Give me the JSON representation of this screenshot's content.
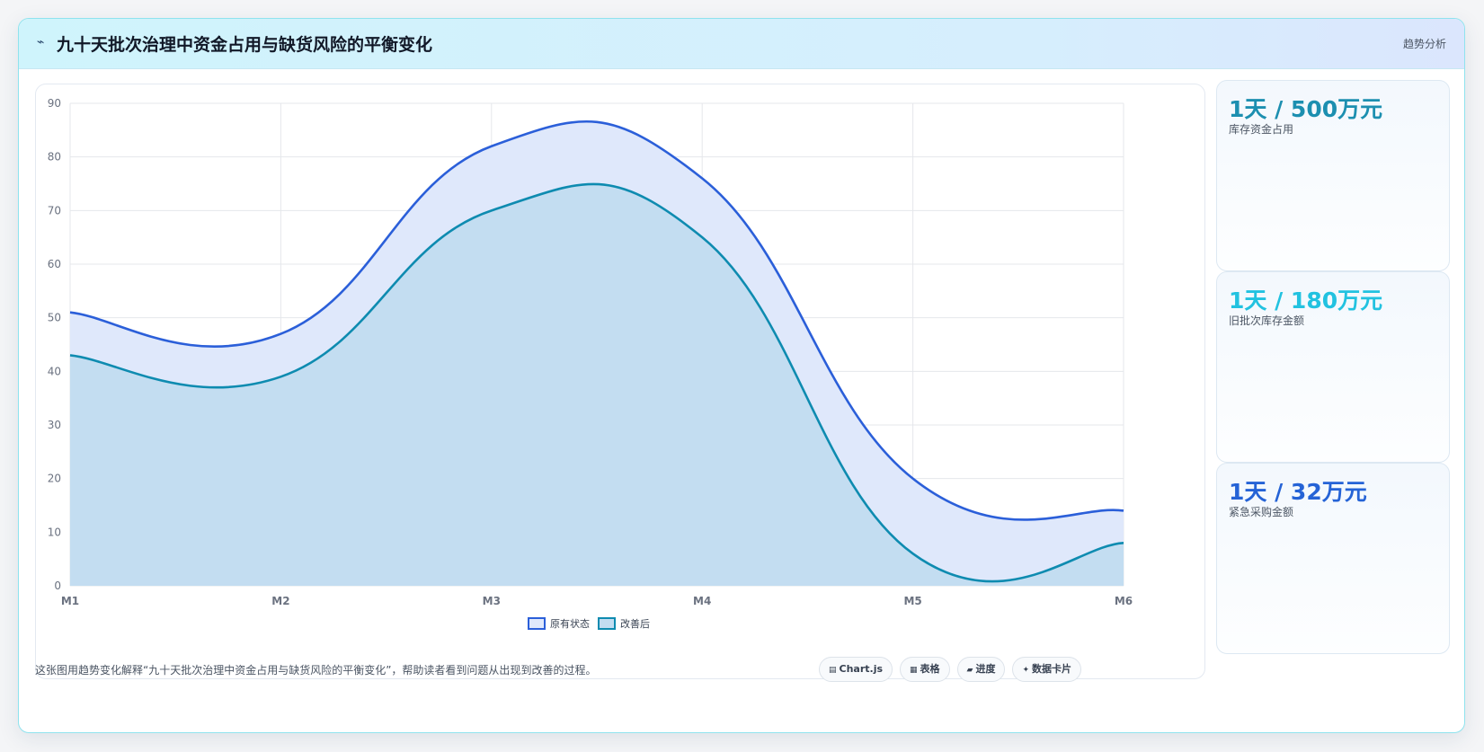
{
  "header": {
    "icon": "trend-icon",
    "title": "九十天批次治理中资金占用与缺货风险的平衡变化",
    "tag": "趋势分析"
  },
  "stats": [
    {
      "value": "1天 / 500万元",
      "label": "库存资金占用",
      "color": "#1c8fb0"
    },
    {
      "value": "1天 / 180万元",
      "label": "旧批次库存金额",
      "color": "#22c2e0"
    },
    {
      "value": "1天 / 32万元",
      "label": "紧急采购金额",
      "color": "#2563d6"
    }
  ],
  "footer": {
    "description": "这张图用趋势变化解释“九十天批次治理中资金占用与缺货风险的平衡变化”，帮助读者看到问题从出现到改善的过程。",
    "chips": [
      {
        "icon": "chart-icon",
        "glyph": "▤",
        "label": "Chart.js"
      },
      {
        "icon": "table-icon",
        "glyph": "▦",
        "label": "表格"
      },
      {
        "icon": "progress-icon",
        "glyph": "▰",
        "label": "进度"
      },
      {
        "icon": "card-icon",
        "glyph": "✦",
        "label": "数据卡片"
      }
    ]
  },
  "chart_data": {
    "type": "area",
    "categories": [
      "M1",
      "M2",
      "M3",
      "M4",
      "M5",
      "M6"
    ],
    "ylim": [
      0,
      90
    ],
    "yticks": [
      0,
      10,
      20,
      30,
      40,
      50,
      60,
      70,
      80,
      90
    ],
    "grid": true,
    "legend_position": "bottom",
    "series": [
      {
        "name": "原有状态",
        "values": [
          51,
          47,
          82,
          76,
          20,
          14
        ],
        "color": "#2b5fd9",
        "fill": "#dfe8fb"
      },
      {
        "name": "改善后",
        "values": [
          43,
          39,
          70,
          65,
          6,
          8
        ],
        "color": "#0e8bb0",
        "fill": "#c3ddf1"
      }
    ]
  }
}
